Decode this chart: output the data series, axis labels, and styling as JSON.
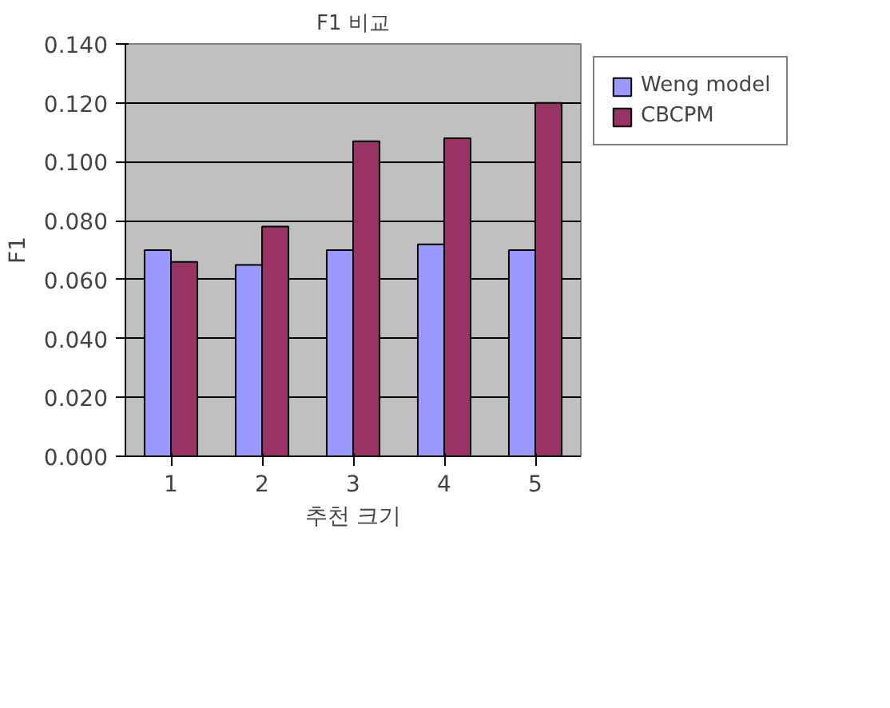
{
  "chart_data": {
    "type": "bar",
    "title": "F1 비교",
    "xlabel": "추천 크기",
    "ylabel": "F1",
    "categories": [
      "1",
      "2",
      "3",
      "4",
      "5"
    ],
    "series": [
      {
        "name": "Weng model",
        "color": "#9999ff",
        "values": [
          0.07,
          0.065,
          0.07,
          0.072,
          0.07
        ]
      },
      {
        "name": "CBCPM",
        "color": "#993366",
        "values": [
          0.066,
          0.078,
          0.107,
          0.108,
          0.12
        ]
      }
    ],
    "ylim": [
      0,
      0.14
    ],
    "yticks": [
      {
        "value": 0,
        "label": "0.000"
      },
      {
        "value": 0.02,
        "label": "0.020"
      },
      {
        "value": 0.04,
        "label": "0.040"
      },
      {
        "value": 0.06,
        "label": "0.060"
      },
      {
        "value": 0.08,
        "label": "0.080"
      },
      {
        "value": 0.1,
        "label": "0.100"
      },
      {
        "value": 0.12,
        "label": "0.120"
      },
      {
        "value": 0.14,
        "label": "0.140"
      }
    ],
    "grid": "y",
    "legend": "right"
  }
}
